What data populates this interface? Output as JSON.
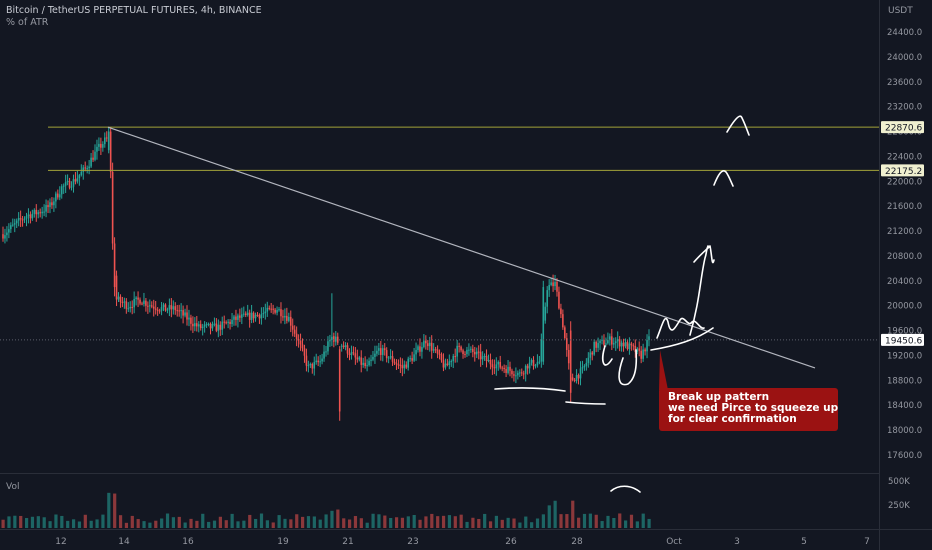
{
  "header": {
    "title": "Bitcoin / TetherUS PERPETUAL FUTURES, 4h, BINANCE",
    "indicator": "% of ATR"
  },
  "currency": "USDT",
  "volume_label": "Vol",
  "annotation": {
    "line1": "Break up pattern",
    "line2": "we need Pirce to squeeze up",
    "line3": "for clear confirmation"
  },
  "colors": {
    "background": "#131722",
    "up": "#26a69a",
    "down": "#ef5350",
    "level_line": "#a3a33a",
    "trendline": "#b2b5be",
    "annotation_bg": "#9b1212"
  },
  "chart_data": {
    "type": "candlestick",
    "price_axis_ticks": [
      "24400.0",
      "24000.0",
      "23600.0",
      "23200.0",
      "22800.0",
      "22400.0",
      "22000.0",
      "21600.0",
      "21200.0",
      "20800.0",
      "20400.0",
      "20000.0",
      "19600.0",
      "19200.0",
      "18800.0",
      "18400.0",
      "18000.0",
      "17600.0"
    ],
    "ylim": [
      17400,
      24800
    ],
    "x_axis_ticks": [
      "12",
      "14",
      "16",
      "19",
      "21",
      "23",
      "26",
      "28",
      "Oct",
      "3",
      "5",
      "7"
    ],
    "volume_axis_ticks": [
      "500K",
      "250K"
    ],
    "horizontal_levels": [
      22870.6,
      22175.2
    ],
    "last_price": 19450.6,
    "candles_summary": {
      "start_price": 21200,
      "peak": 22870,
      "post_drop_range": [
        19600,
        20400
      ],
      "low": 18100,
      "last": 19450.6
    }
  }
}
